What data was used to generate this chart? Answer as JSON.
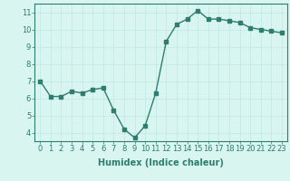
{
  "x": [
    0,
    1,
    2,
    3,
    4,
    5,
    6,
    7,
    8,
    9,
    10,
    11,
    12,
    13,
    14,
    15,
    16,
    17,
    18,
    19,
    20,
    21,
    22,
    23
  ],
  "y": [
    7.0,
    6.1,
    6.1,
    6.4,
    6.3,
    6.5,
    6.6,
    5.3,
    4.2,
    3.7,
    4.4,
    6.3,
    9.3,
    10.3,
    10.6,
    11.1,
    10.6,
    10.6,
    10.5,
    10.4,
    10.1,
    10.0,
    9.9,
    9.8
  ],
  "line_color": "#2e7d6e",
  "bg_color": "#d9f5f0",
  "grid_color": "#c0e8e2",
  "xlabel": "Humidex (Indice chaleur)",
  "ylim": [
    3.5,
    11.5
  ],
  "xlim": [
    -0.5,
    23.5
  ],
  "yticks": [
    4,
    5,
    6,
    7,
    8,
    9,
    10,
    11
  ],
  "xticks": [
    0,
    1,
    2,
    3,
    4,
    5,
    6,
    7,
    8,
    9,
    10,
    11,
    12,
    13,
    14,
    15,
    16,
    17,
    18,
    19,
    20,
    21,
    22,
    23
  ],
  "xlabel_fontsize": 7,
  "tick_fontsize": 6,
  "line_width": 1.0,
  "marker_size": 2.5
}
